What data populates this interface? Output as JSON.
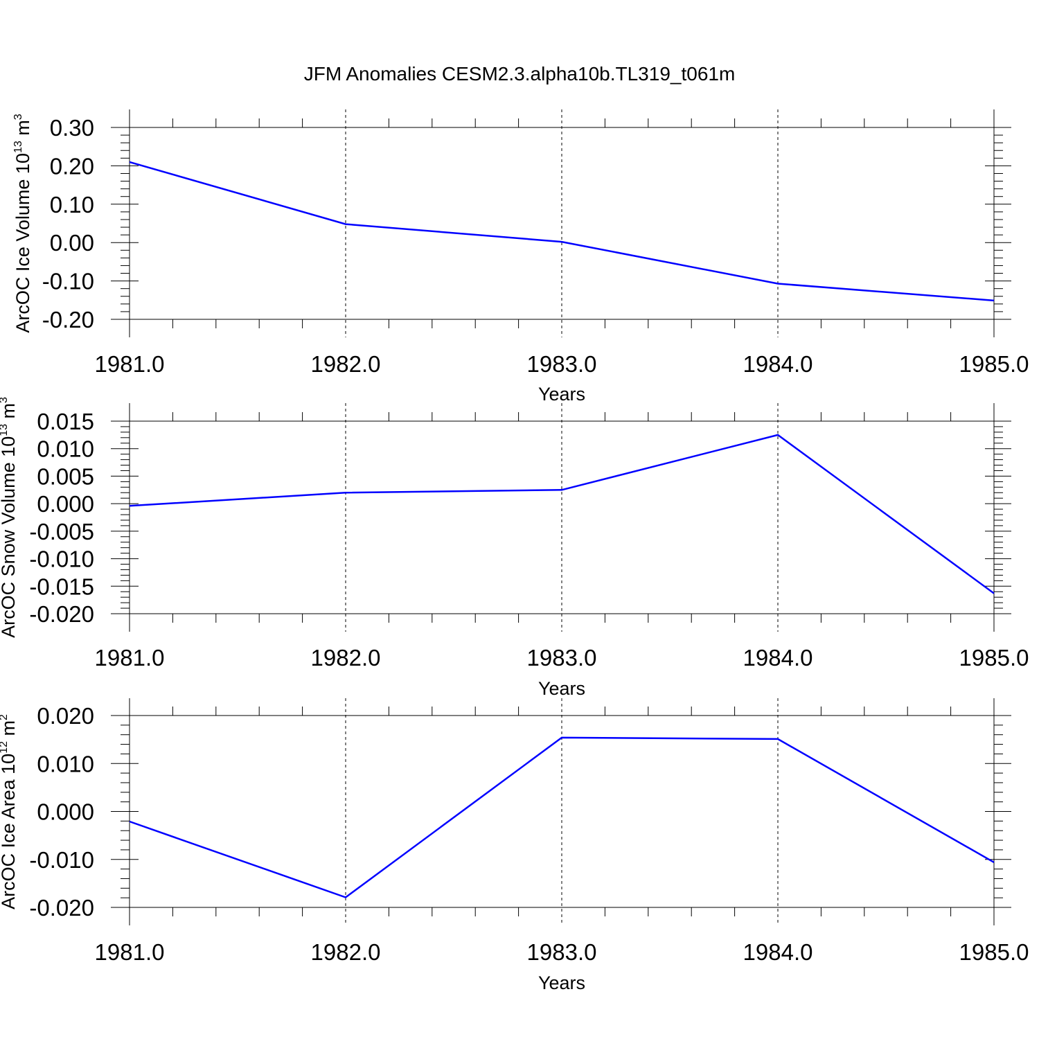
{
  "title": "JFM Anomalies CESM2.3.alpha10b.TL319_t061m",
  "chart_data": [
    {
      "type": "line",
      "ylabel": "ArcOC Ice Volume 10",
      "ylabel_exponent": "13",
      "ylabel_unit": " m",
      "ylabel_unit_exponent": "3",
      "xlabel": "Years",
      "x": [
        1981,
        1982,
        1983,
        1984,
        1985
      ],
      "xticks": [
        "1981.0",
        "1982.0",
        "1983.0",
        "1984.0",
        "1985.0"
      ],
      "xlim": [
        1981,
        1985
      ],
      "yticks": [
        "0.30",
        "0.20",
        "0.10",
        "0.00",
        "-0.10",
        "-0.20"
      ],
      "ytick_values": [
        0.3,
        0.2,
        0.1,
        0.0,
        -0.1,
        -0.2
      ],
      "ylim": [
        -0.2,
        0.3
      ],
      "series": [
        {
          "values": [
            0.21,
            0.048,
            0.002,
            -0.107,
            -0.151
          ],
          "color": "#0000ff"
        }
      ],
      "vertical_grid": "dashed at major x ticks"
    },
    {
      "type": "line",
      "ylabel": "ArcOC Snow Volume 10",
      "ylabel_exponent": "13",
      "ylabel_unit": " m",
      "ylabel_unit_exponent": "3",
      "xlabel": "Years",
      "x": [
        1981,
        1982,
        1983,
        1984,
        1985
      ],
      "xticks": [
        "1981.0",
        "1982.0",
        "1983.0",
        "1984.0",
        "1985.0"
      ],
      "xlim": [
        1981,
        1985
      ],
      "yticks": [
        "0.015",
        "0.010",
        "0.005",
        "0.000",
        "-0.005",
        "-0.010",
        "-0.015",
        "-0.020"
      ],
      "ytick_values": [
        0.015,
        0.01,
        0.005,
        0.0,
        -0.005,
        -0.01,
        -0.015,
        -0.02
      ],
      "ylim": [
        -0.02,
        0.015
      ],
      "series": [
        {
          "values": [
            -0.0004,
            0.002,
            0.0025,
            0.0125,
            -0.0163
          ],
          "color": "#0000ff"
        }
      ],
      "vertical_grid": "dashed at major x ticks"
    },
    {
      "type": "line",
      "ylabel": "ArcOC Ice Area 10",
      "ylabel_exponent": "12",
      "ylabel_unit": " m",
      "ylabel_unit_exponent": "2",
      "xlabel": "Years",
      "x": [
        1981,
        1982,
        1983,
        1984,
        1985
      ],
      "xticks": [
        "1981.0",
        "1982.0",
        "1983.0",
        "1984.0",
        "1985.0"
      ],
      "xlim": [
        1981,
        1985
      ],
      "yticks": [
        "0.020",
        "0.010",
        "0.000",
        "-0.010",
        "-0.020"
      ],
      "ytick_values": [
        0.02,
        0.01,
        0.0,
        -0.01,
        -0.02
      ],
      "ylim": [
        -0.02,
        0.02
      ],
      "series": [
        {
          "values": [
            -0.0021,
            -0.0179,
            0.0154,
            0.0151,
            -0.0106
          ],
          "color": "#0000ff"
        }
      ],
      "vertical_grid": "dashed at major x ticks"
    }
  ]
}
